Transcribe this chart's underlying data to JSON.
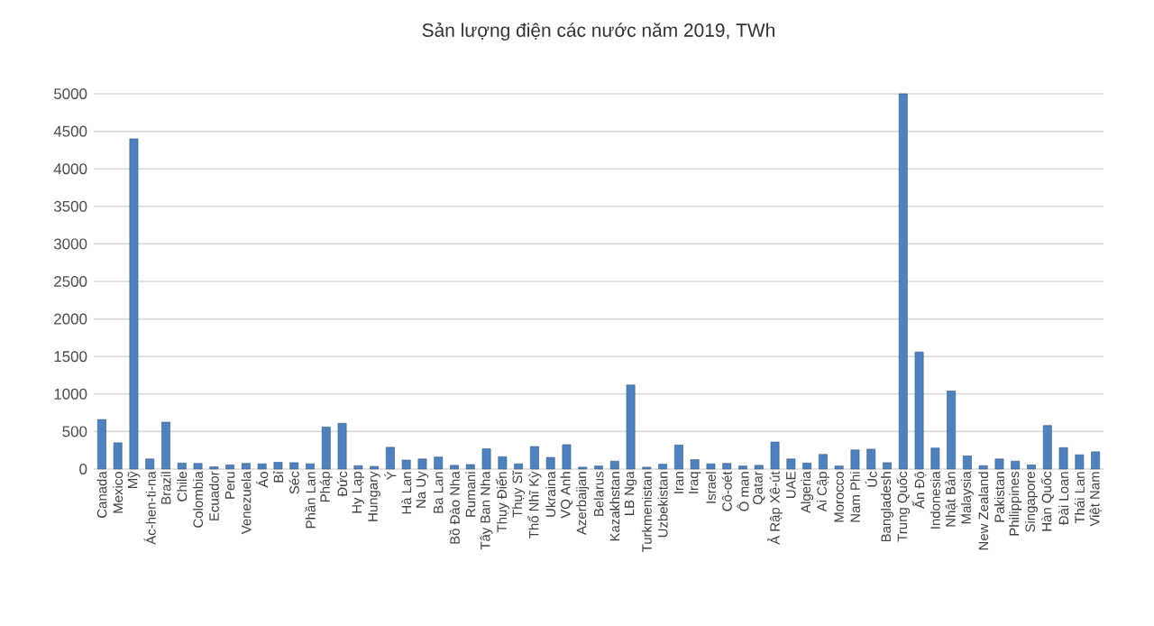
{
  "chart_data": {
    "type": "bar",
    "title": "Sản lượng điện các nước năm 2019, TWh",
    "categories": [
      "Canada",
      "Mexico",
      "Mỹ",
      "Ác-hen-ti-na",
      "Brazil",
      "Chile",
      "Colombia",
      "Ecuador",
      "Peru",
      "Venezuela",
      "Áo",
      "Bỉ",
      "Séc",
      "Phần Lan",
      "Pháp",
      "Đức",
      "Hy Lạp",
      "Hungary",
      "Ý",
      "Hà Lan",
      "Na Uy",
      "Ba Lan",
      "Bồ Đào Nha",
      "Rumani",
      "Tây Ban Nha",
      "Thụy Điển",
      "Thụy Sĩ",
      "Thổ Nhĩ Kỳ",
      "Ukraina",
      "VQ Anh",
      "Azerbaijan",
      "Belarus",
      "Kazakhstan",
      "LB Nga",
      "Turkmenistan",
      "Uzbekistan",
      "Iran",
      "Iraq",
      "Israel",
      "Cô-oét",
      "Ô man",
      "Qatar",
      "Ả Rập Xê-út",
      "UAE",
      "Algeria",
      "Ai Cập",
      "Morocco",
      "Nam Phi",
      "Úc",
      "Bangladesh",
      "Trung Quốc",
      "Ấn Độ",
      "Indonesia",
      "Nhật Bản",
      "Malaysia",
      "New Zealand",
      "Pakistan",
      "Philippines",
      "Singapore",
      "Hàn Quốc",
      "Đài Loan",
      "Thái Lan",
      "Việt Nam"
    ],
    "values": [
      660,
      350,
      4400,
      135,
      625,
      80,
      75,
      30,
      55,
      75,
      70,
      90,
      85,
      70,
      560,
      610,
      45,
      35,
      290,
      120,
      135,
      160,
      50,
      60,
      270,
      165,
      70,
      300,
      155,
      325,
      25,
      40,
      105,
      1120,
      25,
      65,
      320,
      125,
      70,
      75,
      40,
      50,
      360,
      135,
      80,
      195,
      40,
      255,
      265,
      85,
      5000,
      1560,
      280,
      1040,
      175,
      45,
      135,
      105,
      55,
      580,
      285,
      190,
      230
    ],
    "color": "#4f81bd",
    "ylim": [
      0,
      5000
    ],
    "yticks": [
      0,
      500,
      1000,
      1500,
      2000,
      2500,
      3000,
      3500,
      4000,
      4500,
      5000
    ],
    "grid": "y"
  }
}
